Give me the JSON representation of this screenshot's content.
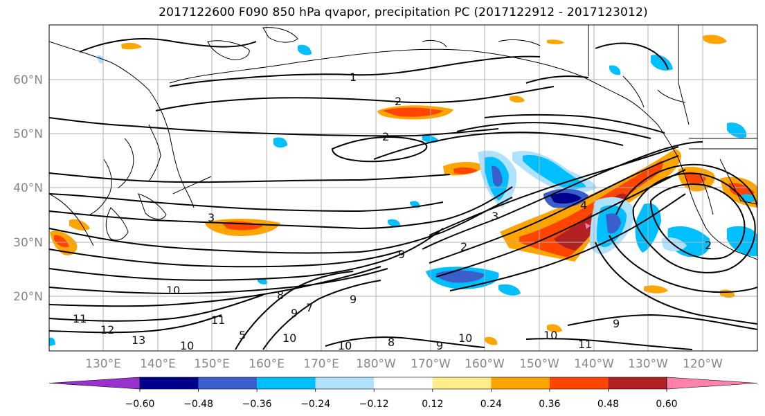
{
  "title": "2017122600 F090 850 hPa qvapor, precipitation PC (2017122912 - 2017123012)",
  "map": {
    "lat_labels": [
      "60°N",
      "50°N",
      "40°N",
      "30°N",
      "20°N"
    ],
    "lon_labels": [
      "130°E",
      "140°E",
      "150°E",
      "160°E",
      "170°E",
      "180°W",
      "170°W",
      "160°W",
      "150°W",
      "140°W",
      "130°W",
      "120°W"
    ],
    "contour_labels": [
      "1",
      "2",
      "2",
      "3",
      "3",
      "4",
      "2",
      "2",
      "9",
      "10",
      "11",
      "12",
      "13",
      "10",
      "10",
      "11",
      "9",
      "10",
      "11",
      "9",
      "10",
      "8",
      "9",
      "10",
      "9",
      "5",
      "7",
      "8"
    ],
    "coastline_color": "#000000",
    "grid": true
  },
  "colorbar": {
    "colors": [
      "#9932cc",
      "#00008b",
      "#3a5fcd",
      "#00bfff",
      "#b0e2ff",
      "#ffffff",
      "#ffec8b",
      "#ffa500",
      "#ff4500",
      "#b22222",
      "#ff82ab"
    ],
    "tick_labels": [
      "−0.60",
      "−0.48",
      "−0.36",
      "−0.24",
      "−0.12",
      "0.12",
      "0.24",
      "0.36",
      "0.48",
      "0.60"
    ],
    "extend": "both"
  }
}
